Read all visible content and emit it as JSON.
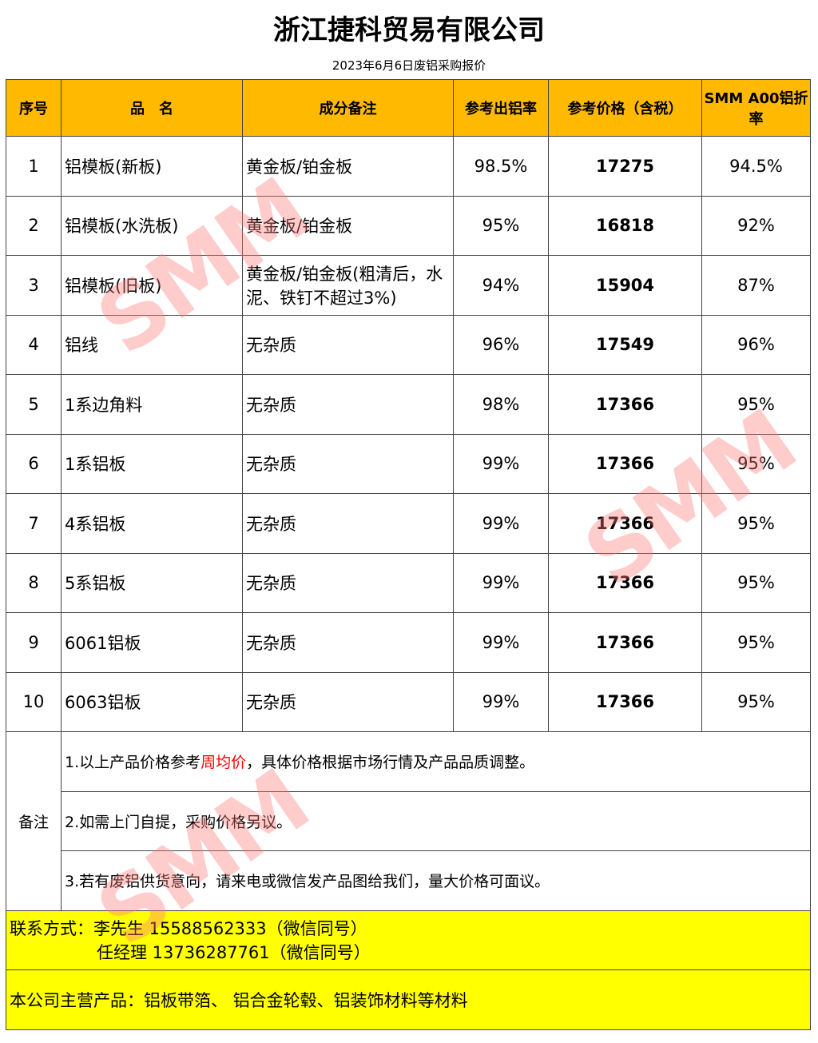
{
  "title": "浙江捷科贸易有限公司",
  "subtitle": "2023年6月6日废铝采购报价",
  "headers": [
    "序号",
    "品　名",
    "成分备注",
    "参考出铝率",
    "参考价格（含税）",
    "SMM A00铝折率"
  ],
  "rows": [
    {
      "no": "1",
      "name": "铝模板(新板)",
      "note": "黄金板/铂金板",
      "yield": "98.5%",
      "price": "17275",
      "rate": "94.5%"
    },
    {
      "no": "2",
      "name": "铝模板(水洗板)",
      "note": "黄金板/铂金板",
      "yield": "95%",
      "price": "16818",
      "rate": "92%"
    },
    {
      "no": "3",
      "name": "铝模板(旧板)",
      "note": "黄金板/铂金板(粗清后，水泥、铁钉不超过3%)",
      "yield": "94%",
      "price": "15904",
      "rate": "87%"
    },
    {
      "no": "4",
      "name": "铝线",
      "note": "无杂质",
      "yield": "96%",
      "price": "17549",
      "rate": "96%"
    },
    {
      "no": "5",
      "name": "1系边角料",
      "note": "无杂质",
      "yield": "98%",
      "price": "17366",
      "rate": "95%"
    },
    {
      "no": "6",
      "name": "1系铝板",
      "note": "无杂质",
      "yield": "99%",
      "price": "17366",
      "rate": "95%"
    },
    {
      "no": "7",
      "name": "4系铝板",
      "note": "无杂质",
      "yield": "99%",
      "price": "17366",
      "rate": "95%"
    },
    {
      "no": "8",
      "name": "5系铝板",
      "note": "无杂质",
      "yield": "99%",
      "price": "17366",
      "rate": "95%"
    },
    {
      "no": "9",
      "name": "6061铝板",
      "note": "无杂质",
      "yield": "99%",
      "price": "17366",
      "rate": "95%"
    },
    {
      "no": "10",
      "name": "6063铝板",
      "note": "无杂质",
      "yield": "99%",
      "price": "17366",
      "rate": "95%"
    }
  ],
  "remarks": {
    "label": "备注",
    "note1_a": "1.以上产品价格参考",
    "note1_red": "周均价",
    "note1_b": "，具体价格根据市场行情及产品品质调整。",
    "note2": "2.如需上门自提，采购价格另议。",
    "note3": "3.若有废铝供货意向，请来电或微信发产品图给我们，量大价格可面议。"
  },
  "contact": {
    "line1": "联系方式：李先生 15588562333（微信同号）",
    "line2": "任经理 13736287761（微信同号）"
  },
  "products": "本公司主营产品：铝板带箔、 铝合金轮毂、铝装饰材料等材料",
  "watermark": "SMM",
  "colors": {
    "header": "#ffb900",
    "footer": "#ffff00",
    "highlight": "#ff0000"
  }
}
